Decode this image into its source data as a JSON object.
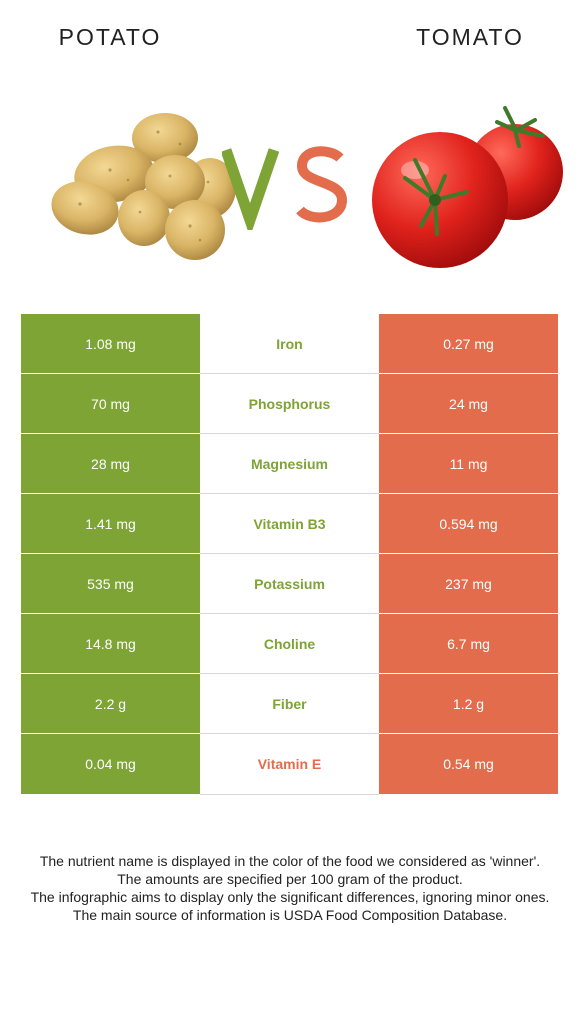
{
  "header": {
    "left_title": "POTATO",
    "right_title": "TOMATO",
    "vs_text": "VS"
  },
  "colors": {
    "potato": "#7da435",
    "tomato": "#e36c4c"
  },
  "rows": [
    {
      "nutrient": "Iron",
      "potato": "1.08 mg",
      "tomato": "0.27 mg",
      "winner": "potato"
    },
    {
      "nutrient": "Phosphorus",
      "potato": "70 mg",
      "tomato": "24 mg",
      "winner": "potato"
    },
    {
      "nutrient": "Magnesium",
      "potato": "28 mg",
      "tomato": "11 mg",
      "winner": "potato"
    },
    {
      "nutrient": "Vitamin B3",
      "potato": "1.41 mg",
      "tomato": "0.594 mg",
      "winner": "potato"
    },
    {
      "nutrient": "Potassium",
      "potato": "535 mg",
      "tomato": "237 mg",
      "winner": "potato"
    },
    {
      "nutrient": "Choline",
      "potato": "14.8 mg",
      "tomato": "6.7 mg",
      "winner": "potato"
    },
    {
      "nutrient": "Fiber",
      "potato": "2.2 g",
      "tomato": "1.2 g",
      "winner": "potato"
    },
    {
      "nutrient": "Vitamin E",
      "potato": "0.04 mg",
      "tomato": "0.54 mg",
      "winner": "tomato"
    }
  ],
  "notes": [
    "The nutrient name is displayed in the color of the food we considered as 'winner'.",
    "The amounts are specified per 100 gram of the product.",
    "The infographic aims to display only the significant differences, ignoring minor ones.",
    "The main source of information is USDA Food Composition Database."
  ]
}
